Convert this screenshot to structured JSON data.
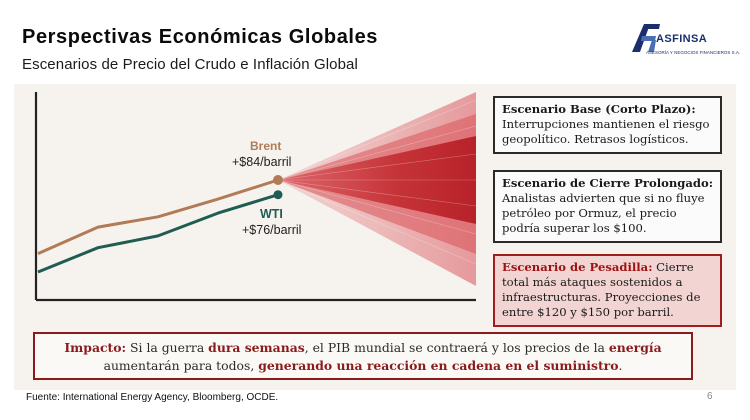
{
  "slide": {
    "title": "Perspectivas Económicas Globales",
    "subtitle": "Escenarios de Precio del Crudo e Inflación Global",
    "page_number": "6",
    "source": "Fuente: International Energy Agency, Bloomberg, OCDE."
  },
  "logo": {
    "mark": "AF",
    "name": "ASFINSA",
    "tagline": "ASESORÍA Y NEGOCIOS FINANCIEROS S.A."
  },
  "chart": {
    "brent_label": "Brent",
    "brent_price": "+$84/barril",
    "wti_label": "WTI",
    "wti_price": "+$76/barril",
    "colors": {
      "brent": "#b27b57",
      "wti": "#1f5c51",
      "cone": "#c0262b"
    }
  },
  "chart_data": {
    "type": "line",
    "title": "",
    "xlabel": "",
    "ylabel": "",
    "series": [
      {
        "name": "Brent",
        "values": [
          0,
          0.36,
          0.5,
          0.74,
          1.0
        ]
      },
      {
        "name": "WTI",
        "values": [
          -0.25,
          0.08,
          0.24,
          0.55,
          0.8
        ]
      }
    ],
    "annotations": [
      "Brent +$84/barril",
      "WTI +$76/barril"
    ]
  },
  "scenarios": [
    {
      "title": "Escenario Base (Corto Plazo):",
      "body": " Interrupciones mantienen el riesgo geopolítico. Retrasos logísticos."
    },
    {
      "title": "Escenario de Cierre Prolongado:",
      "body": " Analistas advierten que si no fluye petróleo por Ormuz, el precio podría superar los $100."
    },
    {
      "title": "Escenario de Pesadilla:",
      "body": " Cierre total más ataques sostenidos a infraestructuras. Proyecciones de entre $120 y $150 por barril."
    }
  ],
  "impact": {
    "label": "Impacto:",
    "t1": " Si la guerra ",
    "h1": "dura semanas",
    "t2": ", el PIB mundial se contraerá y los precios de la ",
    "h2": "energía",
    "t3": " aumentarán para todos, ",
    "h3": "generando una reacción en cadena en el suministro",
    "t4": "."
  }
}
